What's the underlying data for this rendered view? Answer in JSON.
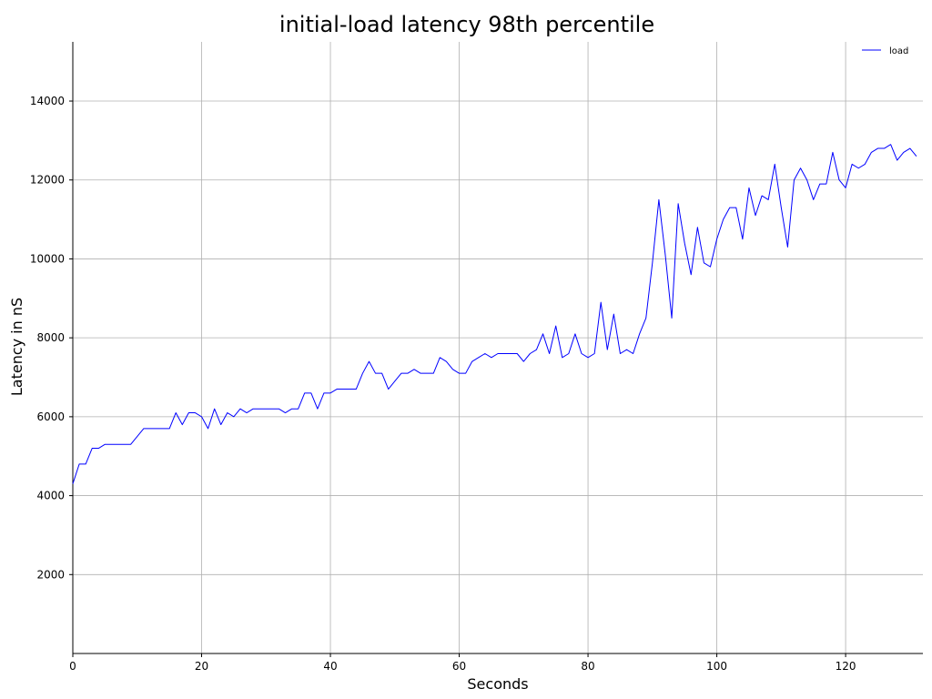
{
  "chart_data": {
    "type": "line",
    "title": "initial-load latency 98th percentile",
    "xlabel": "Seconds",
    "ylabel": "Latency in nS",
    "xlim": [
      0,
      132
    ],
    "ylim": [
      0,
      15500
    ],
    "xticks": [
      0,
      20,
      40,
      60,
      80,
      100,
      120
    ],
    "yticks": [
      2000,
      4000,
      6000,
      8000,
      10000,
      12000,
      14000
    ],
    "grid": true,
    "legend_position": "top-right",
    "series": [
      {
        "name": "load",
        "color": "#0000ff",
        "x": [
          0,
          1,
          2,
          3,
          4,
          5,
          6,
          7,
          8,
          9,
          10,
          11,
          12,
          13,
          14,
          15,
          16,
          17,
          18,
          19,
          20,
          21,
          22,
          23,
          24,
          25,
          26,
          27,
          28,
          29,
          30,
          31,
          32,
          33,
          34,
          35,
          36,
          37,
          38,
          39,
          40,
          41,
          42,
          43,
          44,
          45,
          46,
          47,
          48,
          49,
          50,
          51,
          52,
          53,
          54,
          55,
          56,
          57,
          58,
          59,
          60,
          61,
          62,
          63,
          64,
          65,
          66,
          67,
          68,
          69,
          70,
          71,
          72,
          73,
          74,
          75,
          76,
          77,
          78,
          79,
          80,
          81,
          82,
          83,
          84,
          85,
          86,
          87,
          88,
          89,
          90,
          91,
          92,
          93,
          94,
          95,
          96,
          97,
          98,
          99,
          100,
          101,
          102,
          103,
          104,
          105,
          106,
          107,
          108,
          109,
          110,
          111,
          112,
          113,
          114,
          115,
          116,
          117,
          118,
          119,
          120,
          121,
          122,
          123,
          124,
          125,
          126,
          127,
          128,
          129,
          130,
          131
        ],
        "y": [
          4300,
          4800,
          4800,
          5200,
          5200,
          5300,
          5300,
          5300,
          5300,
          5300,
          5500,
          5700,
          5700,
          5700,
          5700,
          5700,
          6100,
          5800,
          6100,
          6100,
          6000,
          5700,
          6200,
          5800,
          6100,
          6000,
          6200,
          6100,
          6200,
          6200,
          6200,
          6200,
          6200,
          6100,
          6200,
          6200,
          6600,
          6600,
          6200,
          6600,
          6600,
          6700,
          6700,
          6700,
          6700,
          7100,
          7400,
          7100,
          7100,
          6700,
          6900,
          7100,
          7100,
          7200,
          7100,
          7100,
          7100,
          7500,
          7400,
          7200,
          7100,
          7100,
          7400,
          7500,
          7600,
          7500,
          7600,
          7600,
          7600,
          7600,
          7400,
          7600,
          7700,
          8100,
          7600,
          8300,
          7500,
          7600,
          8100,
          7600,
          7500,
          7600,
          8900,
          7700,
          8600,
          7600,
          7700,
          7600,
          8100,
          8500,
          9900,
          11500,
          10100,
          8500,
          11400,
          10400,
          9600,
          10800,
          9900,
          9800,
          10500,
          11000,
          11300,
          11300,
          10500,
          11800,
          11100,
          11600,
          11500,
          12400,
          11300,
          10300,
          12000,
          12300,
          12000,
          11500,
          11900,
          11900,
          12700,
          12000,
          11800,
          12400,
          12300,
          12400,
          12700,
          12800,
          12800,
          12900,
          12500,
          12700,
          12800,
          12600
        ]
      }
    ]
  }
}
